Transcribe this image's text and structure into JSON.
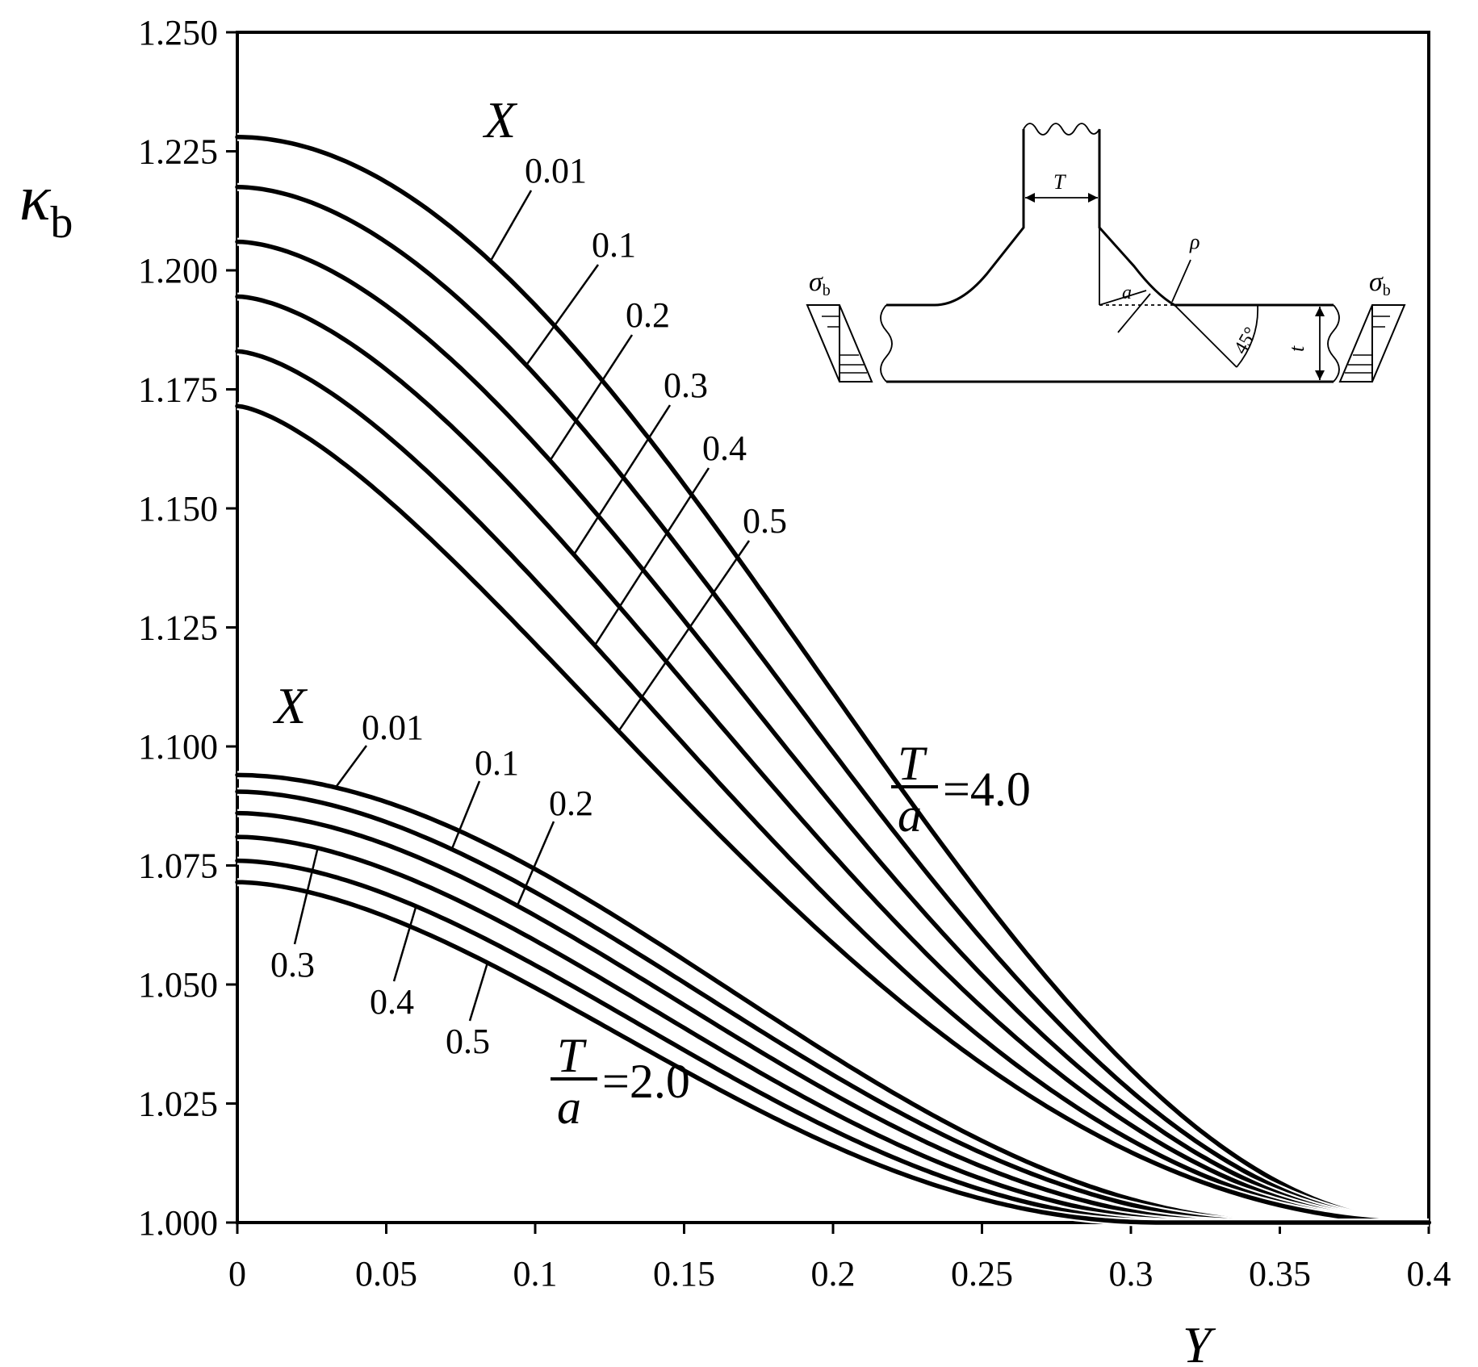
{
  "chart_data": {
    "type": "line",
    "xlabel": "Y",
    "ylabel": "κ",
    "ylabel_sub": "b",
    "xlim": [
      0,
      0.4
    ],
    "ylim": [
      1.0,
      1.25
    ],
    "x_ticks": [
      "0",
      "0.05",
      "0.1",
      "0.15",
      "0.2",
      "0.25",
      "0.3",
      "0.35",
      "0.4"
    ],
    "y_ticks": [
      "1.000",
      "1.025",
      "1.050",
      "1.075",
      "1.100",
      "1.125",
      "1.150",
      "1.175",
      "1.200",
      "1.225",
      "1.250"
    ],
    "grid": false,
    "groups": [
      {
        "ratio_num": "T",
        "ratio_den": "a",
        "ratio_value": "=4.0",
        "param_symbol": "X",
        "series": [
          {
            "name": "0.01",
            "y0": 1.228,
            "x_half": 0.197,
            "x_end": 0.4
          },
          {
            "name": "0.1",
            "y0": 1.2175,
            "x_half": 0.188,
            "x_end": 0.4
          },
          {
            "name": "0.2",
            "y0": 1.206,
            "x_half": 0.18,
            "x_end": 0.4
          },
          {
            "name": "0.3",
            "y0": 1.1945,
            "x_half": 0.172,
            "x_end": 0.4
          },
          {
            "name": "0.4",
            "y0": 1.183,
            "x_half": 0.163,
            "x_end": 0.4
          },
          {
            "name": "0.5",
            "y0": 1.1715,
            "x_half": 0.155,
            "x_end": 0.4
          }
        ]
      },
      {
        "ratio_num": "T",
        "ratio_den": "a",
        "ratio_value": "=2.0",
        "param_symbol": "X",
        "series": [
          {
            "name": "0.01",
            "y0": 1.094,
            "x_half": 0.17,
            "x_end": 0.355
          },
          {
            "name": "0.1",
            "y0": 1.0905,
            "x_half": 0.163,
            "x_end": 0.35
          },
          {
            "name": "0.2",
            "y0": 1.086,
            "x_half": 0.157,
            "x_end": 0.34
          },
          {
            "name": "0.3",
            "y0": 1.081,
            "x_half": 0.151,
            "x_end": 0.33
          },
          {
            "name": "0.4",
            "y0": 1.076,
            "x_half": 0.145,
            "x_end": 0.32
          },
          {
            "name": "0.5",
            "y0": 1.0715,
            "x_half": 0.139,
            "x_end": 0.31
          }
        ]
      }
    ]
  },
  "inset": {
    "label_T": "T",
    "label_rho": "ρ",
    "label_a": "a",
    "label_t": "t",
    "label_angle": "45°",
    "label_sigma": "σ",
    "label_sigma_sub": "b"
  }
}
